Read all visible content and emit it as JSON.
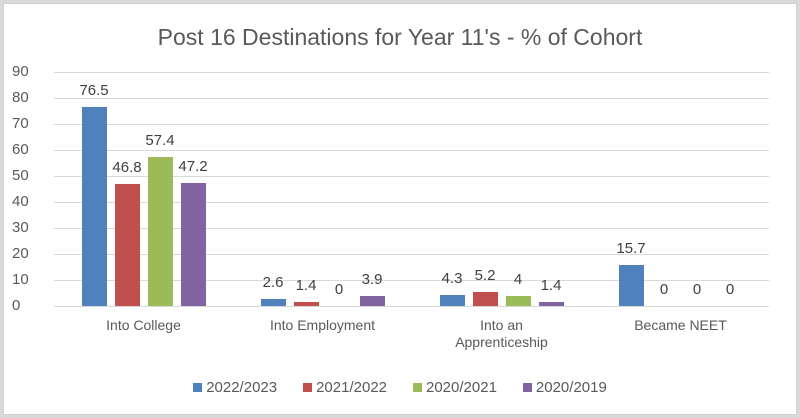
{
  "chart_data": {
    "type": "bar",
    "title": "Post 16 Destinations for Year 11's - % of Cohort",
    "xlabel": "",
    "ylabel": "",
    "ylim": [
      0,
      90
    ],
    "yticks": [
      0,
      10,
      20,
      30,
      40,
      50,
      60,
      70,
      80,
      90
    ],
    "grid": true,
    "legend_position": "bottom",
    "categories": [
      "Into College",
      "Into Employment",
      "Into an Apprenticeship",
      "Became NEET"
    ],
    "series": [
      {
        "name": "2022/2023",
        "color": "#4f81bd",
        "values": [
          76.5,
          2.6,
          4.3,
          15.7
        ]
      },
      {
        "name": "2021/2022",
        "color": "#c0504d",
        "values": [
          46.8,
          1.4,
          5.2,
          0
        ]
      },
      {
        "name": "2020/2021",
        "color": "#9bbb59",
        "values": [
          57.4,
          0,
          4,
          0
        ]
      },
      {
        "name": "2020/2019",
        "color": "#8064a2",
        "values": [
          47.2,
          3.9,
          1.4,
          0
        ]
      }
    ]
  },
  "category_labels": [
    [
      "Into College"
    ],
    [
      "Into Employment"
    ],
    [
      "Into an",
      "Apprenticeship"
    ],
    [
      "Became NEET"
    ]
  ],
  "value_labels": [
    [
      "76.5",
      "2.6",
      "4.3",
      "15.7"
    ],
    [
      "46.8",
      "1.4",
      "5.2",
      "0"
    ],
    [
      "57.4",
      "0",
      "4",
      "0"
    ],
    [
      "47.2",
      "3.9",
      "1.4",
      "0"
    ]
  ]
}
